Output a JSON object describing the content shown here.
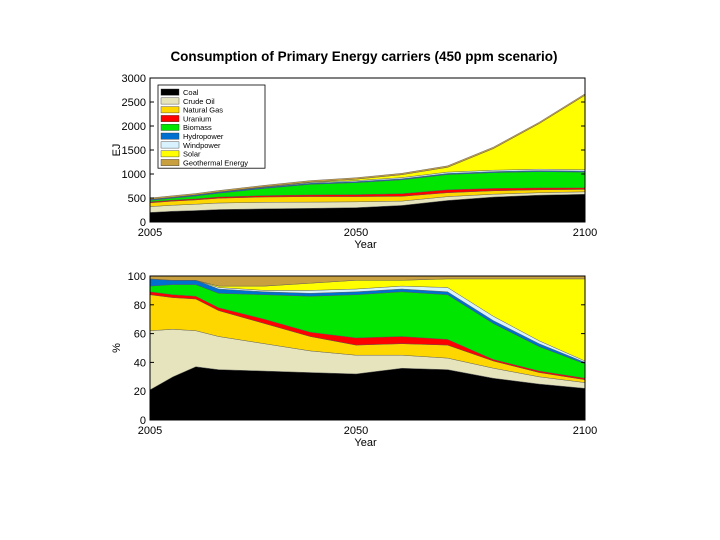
{
  "title": "Consumption of Primary Energy carriers (450 ppm scenario)",
  "chart_data": [
    {
      "type": "area",
      "stacked": true,
      "title": "Consumption of Primary Energy carriers (450 ppm scenario)",
      "xlabel": "Year",
      "ylabel": "EJ",
      "xlim": [
        2005,
        2100
      ],
      "ylim": [
        0,
        3000
      ],
      "xticks": [
        2005,
        2050,
        2100
      ],
      "yticks": [
        0,
        500,
        1000,
        1500,
        2000,
        2500,
        3000
      ],
      "legend_position": "top-left",
      "x": [
        2005,
        2010,
        2015,
        2020,
        2030,
        2040,
        2050,
        2060,
        2070,
        2080,
        2090,
        2100
      ],
      "series": [
        {
          "name": "Coal",
          "color": "#000000",
          "values": [
            200,
            225,
            240,
            260,
            275,
            285,
            300,
            345,
            450,
            520,
            560,
            580
          ]
        },
        {
          "name": "Crude Oil",
          "color": "#e6e4bd",
          "values": [
            120,
            125,
            130,
            135,
            135,
            130,
            120,
            90,
            80,
            60,
            50,
            50
          ]
        },
        {
          "name": "Natural Gas",
          "color": "#ffd700",
          "values": [
            80,
            85,
            90,
            100,
            110,
            115,
            110,
            100,
            80,
            70,
            60,
            50
          ]
        },
        {
          "name": "Uranium",
          "color": "#ff0000",
          "values": [
            20,
            22,
            22,
            25,
            30,
            35,
            40,
            55,
            60,
            50,
            40,
            30
          ]
        },
        {
          "name": "Biomass",
          "color": "#00e600",
          "values": [
            30,
            40,
            60,
            80,
            150,
            220,
            250,
            290,
            320,
            330,
            340,
            330
          ]
        },
        {
          "name": "Hydropower",
          "color": "#0070d0",
          "values": [
            20,
            20,
            20,
            20,
            20,
            22,
            22,
            20,
            20,
            20,
            20,
            20
          ]
        },
        {
          "name": "Windpower",
          "color": "#d8f3ff",
          "values": [
            0,
            0,
            2,
            5,
            10,
            15,
            20,
            25,
            30,
            30,
            30,
            30
          ]
        },
        {
          "name": "Solar",
          "color": "#ffff00",
          "values": [
            0,
            0,
            0,
            1,
            5,
            10,
            30,
            60,
            100,
            450,
            950,
            1550
          ]
        },
        {
          "name": "Geothermal Energy",
          "color": "#c8a040",
          "values": [
            30,
            30,
            30,
            30,
            30,
            30,
            30,
            30,
            30,
            30,
            30,
            30
          ]
        }
      ]
    },
    {
      "type": "area",
      "stacked": true,
      "xlabel": "Year",
      "ylabel": "%",
      "xlim": [
        2005,
        2100
      ],
      "ylim": [
        0,
        100
      ],
      "xticks": [
        2005,
        2050,
        2100
      ],
      "yticks": [
        0,
        20,
        40,
        60,
        80,
        100
      ],
      "x": [
        2005,
        2010,
        2015,
        2020,
        2030,
        2040,
        2050,
        2060,
        2070,
        2080,
        2090,
        2100
      ],
      "series": [
        {
          "name": "Coal",
          "color": "#000000",
          "values": [
            21,
            30,
            37,
            35,
            34,
            33,
            32,
            36,
            35,
            29,
            25,
            22
          ]
        },
        {
          "name": "Crude Oil",
          "color": "#e6e4bd",
          "values": [
            41,
            33,
            25,
            23,
            19,
            15,
            13,
            9,
            8,
            7,
            5,
            4
          ]
        },
        {
          "name": "Natural Gas",
          "color": "#ffd700",
          "values": [
            25,
            22,
            22,
            18,
            14,
            10,
            7,
            8,
            9,
            5,
            3,
            2
          ]
        },
        {
          "name": "Uranium",
          "color": "#ff0000",
          "values": [
            2,
            2,
            2,
            2,
            3,
            3,
            5,
            5,
            4,
            1,
            1,
            1
          ]
        },
        {
          "name": "Biomass",
          "color": "#00e600",
          "values": [
            4,
            7,
            8,
            10,
            17,
            25,
            30,
            31,
            31,
            25,
            17,
            10
          ]
        },
        {
          "name": "Hydropower",
          "color": "#0070d0",
          "values": [
            5,
            3,
            3,
            3,
            2,
            2,
            2,
            2,
            2,
            2,
            2,
            1
          ]
        },
        {
          "name": "Windpower",
          "color": "#d8f3ff",
          "values": [
            0,
            0,
            0,
            1,
            1,
            2,
            2,
            2,
            3,
            3,
            2,
            1
          ]
        },
        {
          "name": "Solar",
          "color": "#ffff00",
          "values": [
            0,
            0,
            0,
            1,
            3,
            5,
            6,
            4,
            6,
            26,
            43,
            57
          ]
        },
        {
          "name": "Geothermal Energy",
          "color": "#c8a040",
          "values": [
            2,
            3,
            3,
            7,
            7,
            5,
            3,
            3,
            2,
            2,
            2,
            2
          ]
        }
      ]
    }
  ]
}
